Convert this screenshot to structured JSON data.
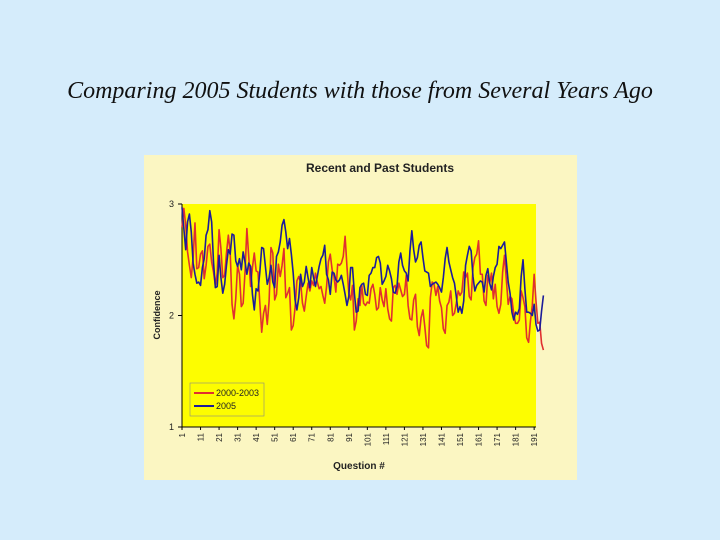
{
  "slide": {
    "title": "Comparing 2005 Students with those from Several Years Ago"
  },
  "colors": {
    "background": "#d5ecfb",
    "chart_panel": "#fbf6c2",
    "plot_area": "#fdfd00",
    "series_2000_2003": "#e03030",
    "series_2005": "#1c1c9a"
  },
  "chart_data": {
    "type": "line",
    "title": "Recent and Past Students",
    "xlabel": "Question #",
    "ylabel": "Confidence",
    "ylim": [
      1,
      3
    ],
    "yticks": [
      1,
      2,
      3
    ],
    "xlim": [
      1,
      192
    ],
    "xtick_labels": [
      "1",
      "11",
      "21",
      "31",
      "41",
      "51",
      "61",
      "71",
      "81",
      "91",
      "101",
      "111",
      "121",
      "131",
      "141",
      "151",
      "161",
      "171",
      "181",
      "191"
    ],
    "grid": false,
    "legend_position": "bottom-left",
    "series": [
      {
        "name": "2000-2003",
        "values": [
          2.79,
          2.96,
          2.81,
          2.57,
          2.45,
          2.34,
          2.52,
          2.83,
          2.42,
          2.43,
          2.55,
          2.58,
          2.33,
          2.45,
          2.62,
          2.64,
          2.48,
          2.39,
          2.27,
          2.38,
          2.77,
          2.6,
          2.34,
          2.36,
          2.56,
          2.72,
          2.57,
          2.1,
          1.97,
          2.15,
          2.45,
          2.37,
          2.08,
          2.11,
          2.39,
          2.78,
          2.53,
          2.26,
          2.43,
          2.56,
          2.4,
          2.39,
          2.11,
          1.85,
          2.02,
          2.09,
          1.92,
          2.13,
          2.61,
          2.56,
          2.14,
          2.19,
          2.46,
          2.35,
          2.45,
          2.6,
          2.16,
          2.2,
          2.25,
          1.87,
          1.91,
          2.07,
          2.31,
          2.35,
          2.3,
          2.11,
          2.04,
          2.17,
          2.29,
          2.22,
          2.31,
          2.27,
          2.38,
          2.3,
          2.24,
          2.26,
          2.18,
          2.11,
          2.26,
          2.48,
          2.55,
          2.41,
          2.35,
          2.21,
          2.46,
          2.45,
          2.47,
          2.53,
          2.71,
          2.44,
          2.2,
          2.14,
          2.27,
          1.87,
          1.95,
          2.15,
          2.09,
          2.27,
          2.11,
          2.09,
          2.12,
          2.11,
          2.24,
          2.28,
          2.19,
          2.05,
          2.07,
          2.25,
          2.14,
          2.08,
          2.24,
          2.06,
          1.97,
          1.95,
          2.25,
          2.27,
          2.19,
          2.29,
          2.23,
          2.17,
          2.19,
          2.36,
          2.09,
          1.97,
          1.96,
          2.14,
          2.19,
          1.9,
          1.82,
          1.98,
          2.05,
          1.9,
          1.73,
          1.71,
          2.16,
          2.3,
          2.28,
          2.18,
          2.26,
          2.13,
          2.07,
          1.88,
          1.84,
          2.09,
          2.12,
          2.22,
          2.0,
          2.02,
          2.11,
          2.22,
          2.18,
          2.21,
          2.39,
          2.34,
          2.38,
          2.17,
          2.14,
          2.43,
          2.52,
          2.55,
          2.67,
          2.37,
          2.37,
          2.13,
          2.09,
          2.36,
          2.29,
          2.38,
          2.15,
          2.28,
          2.08,
          2.02,
          2.1,
          2.39,
          2.54,
          2.32,
          2.1,
          2.17,
          2.15,
          2.01,
          1.93,
          1.93,
          1.96,
          2.22,
          2.16,
          2.08,
          1.8,
          1.76,
          1.95,
          2.09,
          2.37,
          2.13,
          1.93,
          1.94,
          1.75,
          1.69
        ]
      },
      {
        "name": "2005",
        "values": [
          2.97,
          2.78,
          2.59,
          2.84,
          2.91,
          2.75,
          2.47,
          2.37,
          2.29,
          2.3,
          2.27,
          2.43,
          2.51,
          2.72,
          2.77,
          2.94,
          2.84,
          2.48,
          2.25,
          2.26,
          2.54,
          2.34,
          2.2,
          2.28,
          2.45,
          2.59,
          2.55,
          2.73,
          2.72,
          2.49,
          2.44,
          2.51,
          2.41,
          2.57,
          2.48,
          2.37,
          2.47,
          2.44,
          2.19,
          2.05,
          2.24,
          2.22,
          2.39,
          2.61,
          2.6,
          2.44,
          2.28,
          2.34,
          2.45,
          2.3,
          2.25,
          2.53,
          2.57,
          2.66,
          2.81,
          2.86,
          2.75,
          2.6,
          2.69,
          2.55,
          2.38,
          2.14,
          2.05,
          2.16,
          2.37,
          2.26,
          2.3,
          2.44,
          2.34,
          2.25,
          2.43,
          2.34,
          2.26,
          2.35,
          2.44,
          2.51,
          2.54,
          2.63,
          2.37,
          2.32,
          2.19,
          2.39,
          2.38,
          2.32,
          2.3,
          2.32,
          2.36,
          2.28,
          2.19,
          2.09,
          2.17,
          2.43,
          2.43,
          2.2,
          2.03,
          2.04,
          2.25,
          2.28,
          2.29,
          2.19,
          2.18,
          2.36,
          2.38,
          2.43,
          2.43,
          2.52,
          2.53,
          2.47,
          2.28,
          2.31,
          2.35,
          2.45,
          2.4,
          2.33,
          2.21,
          2.2,
          2.26,
          2.48,
          2.56,
          2.45,
          2.4,
          2.38,
          2.31,
          2.58,
          2.76,
          2.59,
          2.48,
          2.52,
          2.63,
          2.66,
          2.52,
          2.4,
          2.39,
          2.38,
          2.26,
          2.28,
          2.29,
          2.3,
          2.28,
          2.25,
          2.21,
          2.34,
          2.51,
          2.61,
          2.48,
          2.41,
          2.34,
          2.29,
          2.17,
          2.03,
          2.08,
          2.02,
          2.13,
          2.45,
          2.54,
          2.62,
          2.58,
          2.35,
          2.22,
          2.27,
          2.29,
          2.31,
          2.3,
          2.21,
          2.36,
          2.42,
          2.29,
          2.23,
          2.35,
          2.43,
          2.46,
          2.62,
          2.6,
          2.63,
          2.66,
          2.48,
          2.3,
          2.2,
          2.03,
          1.96,
          2.03,
          2.01,
          2.06,
          2.35,
          2.5,
          2.24,
          2.03,
          2.03,
          2.02,
          2.0,
          2.1,
          1.92,
          1.86,
          1.87,
          2.04,
          2.18
        ]
      }
    ]
  }
}
